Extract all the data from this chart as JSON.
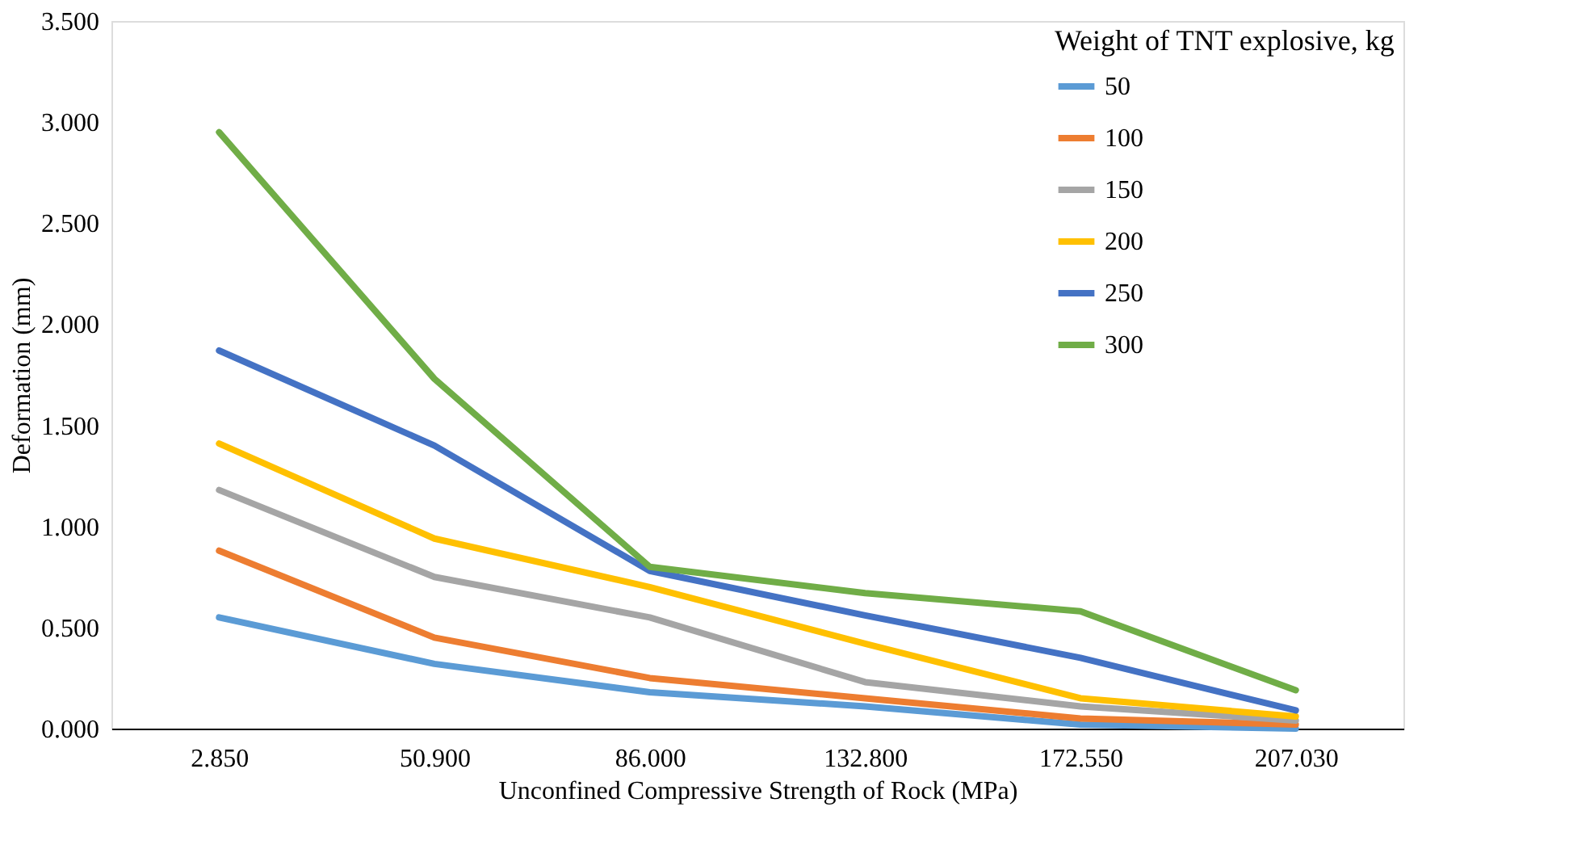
{
  "chart_data": {
    "type": "line",
    "xlabel": "Unconfined Compressive Strength of Rock (MPa)",
    "ylabel": "Deformation (mm)",
    "legend_title": "Weight of TNT explosive, kg",
    "legend": "top right",
    "grid": false,
    "marker": "none",
    "line_style": "solid",
    "categories": [
      "2.850",
      "50.900",
      "86.000",
      "132.800",
      "172.550",
      "207.030"
    ],
    "ylim": [
      0,
      3.5
    ],
    "yticks": [
      {
        "value": 0,
        "label": "0.000"
      },
      {
        "value": 0.5,
        "label": "0.500"
      },
      {
        "value": 1,
        "label": "1.000"
      },
      {
        "value": 1.5,
        "label": "1.500"
      },
      {
        "value": 2,
        "label": "2.000"
      },
      {
        "value": 2.5,
        "label": "2.500"
      },
      {
        "value": 3,
        "label": "3.000"
      },
      {
        "value": 3.5,
        "label": "3.500"
      }
    ],
    "series": [
      {
        "name": "50",
        "color": "#5b9bd5",
        "values": [
          0.55,
          0.32,
          0.18,
          0.11,
          0.02,
          0.0
        ]
      },
      {
        "name": "100",
        "color": "#ed7d31",
        "values": [
          0.88,
          0.45,
          0.25,
          0.15,
          0.05,
          0.02
        ]
      },
      {
        "name": "150",
        "color": "#a5a5a5",
        "values": [
          1.18,
          0.75,
          0.55,
          0.23,
          0.11,
          0.04
        ]
      },
      {
        "name": "200",
        "color": "#ffc000",
        "values": [
          1.41,
          0.94,
          0.7,
          0.42,
          0.15,
          0.06
        ]
      },
      {
        "name": "250",
        "color": "#4472c4",
        "values": [
          1.87,
          1.4,
          0.78,
          0.56,
          0.35,
          0.09
        ]
      },
      {
        "name": "300",
        "color": "#70ad47",
        "values": [
          2.95,
          1.73,
          0.8,
          0.67,
          0.58,
          0.19
        ]
      }
    ]
  }
}
